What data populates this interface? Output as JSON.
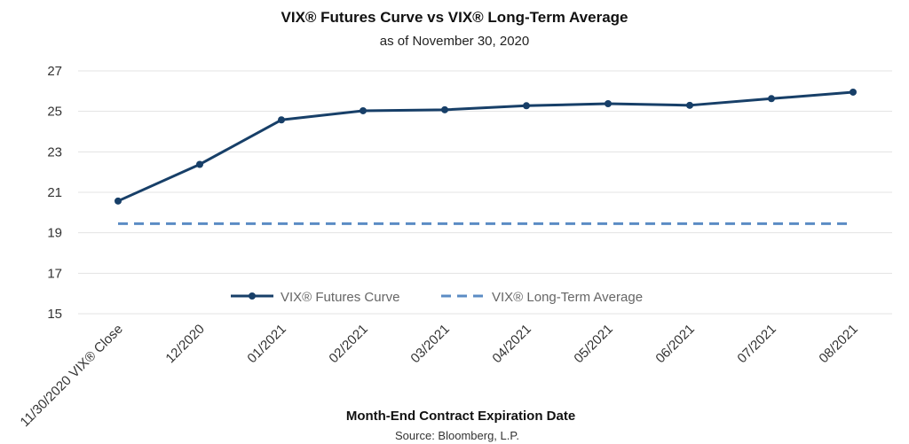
{
  "chart_data": {
    "type": "line",
    "title": "VIX® Futures Curve vs VIX® Long-Term Average",
    "subtitle": "as of November 30, 2020",
    "xlabel": "Month-End Contract Expiration Date",
    "source": "Source: Bloomberg, L.P.",
    "categories": [
      "11/30/2020 VIX® Close",
      "12/2020",
      "01/2021",
      "02/2021",
      "03/2021",
      "04/2021",
      "05/2021",
      "06/2021",
      "07/2021",
      "08/2021"
    ],
    "ylim": [
      15,
      27
    ],
    "yticks": [
      "27",
      "25",
      "23",
      "21",
      "19",
      "17",
      "15"
    ],
    "grid": true,
    "legend_position": "bottom-center-inside",
    "series": [
      {
        "name": "VIX® Futures Curve",
        "style": "solid-with-markers",
        "color": "#173f68",
        "values": [
          20.57,
          22.38,
          24.58,
          25.03,
          25.08,
          25.28,
          25.38,
          25.3,
          25.63,
          25.95
        ]
      },
      {
        "name": "VIX® Long-Term Average",
        "style": "dashed",
        "color": "#5b8cc4",
        "values": [
          19.45,
          19.45,
          19.45,
          19.45,
          19.45,
          19.45,
          19.45,
          19.45,
          19.45,
          19.45
        ]
      }
    ]
  }
}
